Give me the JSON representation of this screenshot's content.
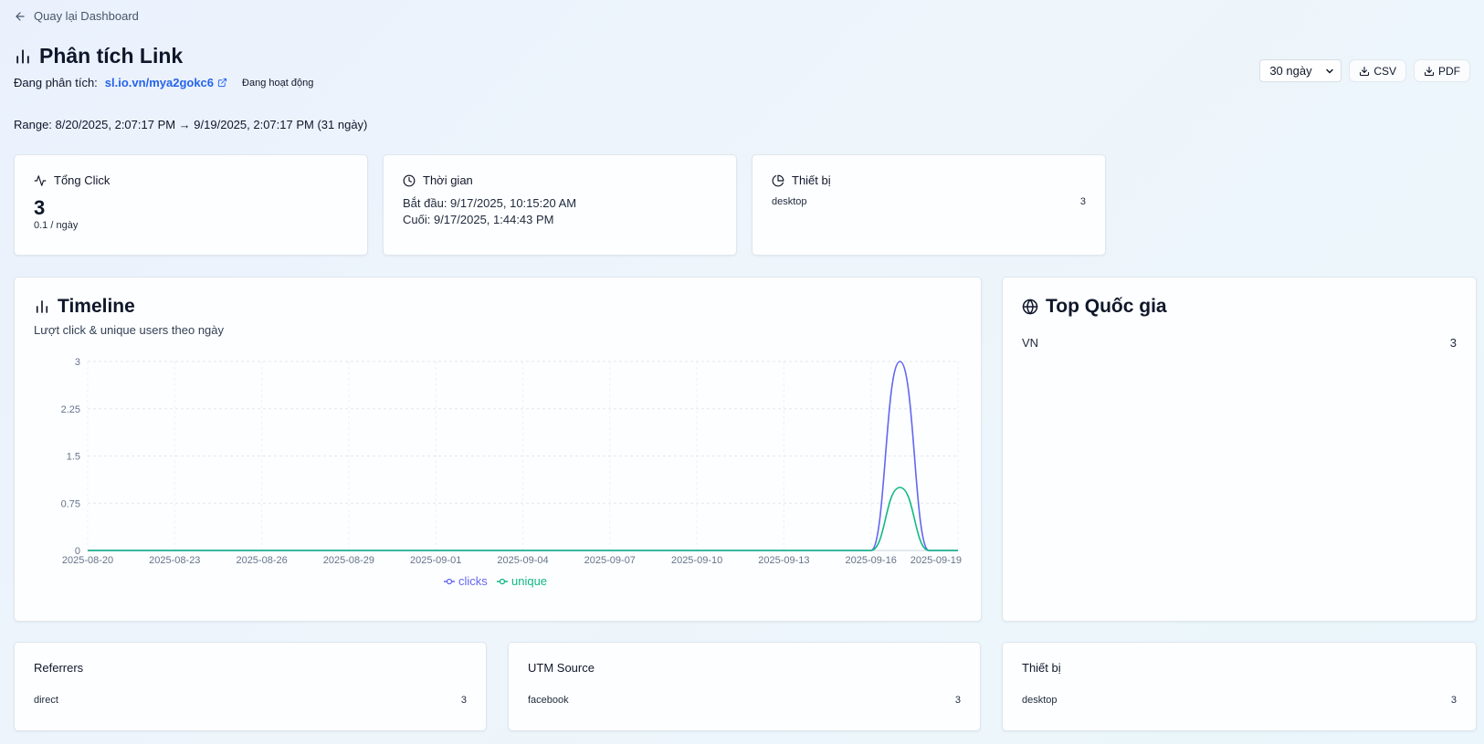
{
  "nav": {
    "back_label": "Quay lại Dashboard"
  },
  "header": {
    "title": "Phân tích Link",
    "analyzing_label": "Đang phân tích:",
    "link_url": "sl.io.vn/mya2gokc6",
    "status": "Đang hoạt động",
    "range": "Range: 8/20/2025, 2:07:17 PM → 9/19/2025, 2:07:17 PM (31 ngày)"
  },
  "controls": {
    "period_value": "30 ngày",
    "csv_label": "CSV",
    "pdf_label": "PDF"
  },
  "stats": {
    "total": {
      "title": "Tổng Click",
      "value": "3",
      "rate": "0.1 / ngày"
    },
    "time": {
      "title": "Thời gian",
      "start": "Bắt đầu: 9/17/2025, 10:15:20 AM",
      "end": "Cuối: 9/17/2025, 1:44:43 PM"
    },
    "devices": {
      "title": "Thiết bị",
      "rows": [
        {
          "label": "desktop",
          "value": "3"
        }
      ]
    }
  },
  "timeline": {
    "title": "Timeline",
    "description": "Lượt click & unique users theo ngày"
  },
  "top_countries": {
    "title": "Top Quốc gia",
    "rows": [
      {
        "label": "VN",
        "value": "3"
      }
    ]
  },
  "bottom": {
    "referrers": {
      "title": "Referrers",
      "rows": [
        {
          "label": "direct",
          "value": "3"
        }
      ]
    },
    "utm": {
      "title": "UTM Source",
      "rows": [
        {
          "label": "facebook",
          "value": "3"
        }
      ]
    },
    "devices": {
      "title": "Thiết bị",
      "rows": [
        {
          "label": "desktop",
          "value": "3"
        }
      ]
    }
  },
  "colors": {
    "clicks": "#6366f1",
    "unique": "#10b981",
    "link": "#2563eb"
  },
  "chart_data": {
    "type": "line",
    "x": [
      "2025-08-20",
      "2025-08-21",
      "2025-08-22",
      "2025-08-23",
      "2025-08-24",
      "2025-08-25",
      "2025-08-26",
      "2025-08-27",
      "2025-08-28",
      "2025-08-29",
      "2025-08-30",
      "2025-08-31",
      "2025-09-01",
      "2025-09-02",
      "2025-09-03",
      "2025-09-04",
      "2025-09-05",
      "2025-09-06",
      "2025-09-07",
      "2025-09-08",
      "2025-09-09",
      "2025-09-10",
      "2025-09-11",
      "2025-09-12",
      "2025-09-13",
      "2025-09-14",
      "2025-09-15",
      "2025-09-16",
      "2025-09-17",
      "2025-09-18",
      "2025-09-19"
    ],
    "x_ticks": [
      "2025-08-20",
      "2025-08-23",
      "2025-08-26",
      "2025-08-29",
      "2025-09-01",
      "2025-09-04",
      "2025-09-07",
      "2025-09-10",
      "2025-09-13",
      "2025-09-16",
      "2025-09-19"
    ],
    "y_ticks": [
      "0",
      "0.75",
      "1.5",
      "2.25",
      "3"
    ],
    "ylim": [
      0,
      3
    ],
    "series": [
      {
        "name": "clicks",
        "values": [
          0,
          0,
          0,
          0,
          0,
          0,
          0,
          0,
          0,
          0,
          0,
          0,
          0,
          0,
          0,
          0,
          0,
          0,
          0,
          0,
          0,
          0,
          0,
          0,
          0,
          0,
          0,
          0,
          3,
          0,
          0
        ]
      },
      {
        "name": "unique",
        "values": [
          0,
          0,
          0,
          0,
          0,
          0,
          0,
          0,
          0,
          0,
          0,
          0,
          0,
          0,
          0,
          0,
          0,
          0,
          0,
          0,
          0,
          0,
          0,
          0,
          0,
          0,
          0,
          0,
          1,
          0,
          0
        ]
      }
    ],
    "grid": true,
    "legend": "bottom-center"
  }
}
